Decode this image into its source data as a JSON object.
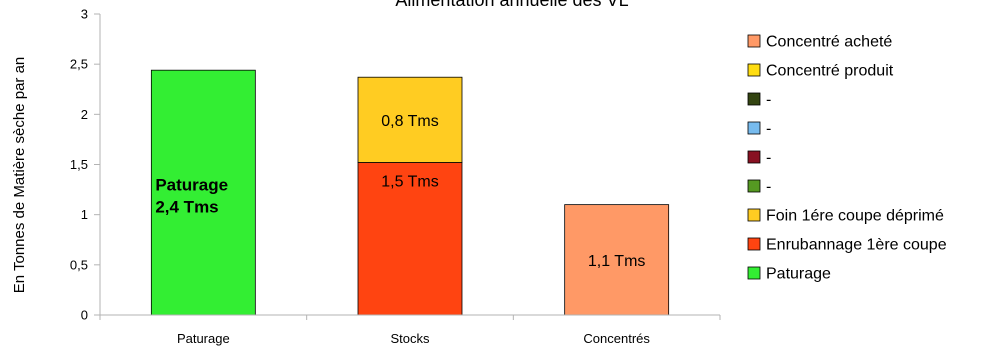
{
  "chart_data": {
    "type": "bar",
    "stacked": true,
    "title": "Alimentation annuelle des VL",
    "xlabel": "",
    "ylabel": "En Tonnes de Matière sèche par an",
    "ylim": [
      0,
      3
    ],
    "yticks": [
      "0",
      "0,5",
      "1",
      "1,5",
      "2",
      "2,5",
      "3"
    ],
    "ytick_values": [
      0,
      0.5,
      1,
      1.5,
      2,
      2.5,
      3
    ],
    "grid": false,
    "legend_position": "right",
    "categories": [
      "Paturage",
      "Stocks",
      "Concentrés"
    ],
    "series": [
      {
        "name": "Paturage",
        "color": "#33ee33",
        "values": [
          2.44,
          0,
          0
        ],
        "labels": [
          "Paturage",
          "",
          ""
        ],
        "labels2": [
          "2,4 Tms",
          "",
          ""
        ]
      },
      {
        "name": "Enrubannage 1ère coupe",
        "color": "#ff4411",
        "values": [
          0,
          1.52,
          0
        ],
        "labels": [
          "",
          "1,5 Tms",
          ""
        ]
      },
      {
        "name": "Foin 1ére coupe déprimé",
        "color": "#ffcc22",
        "values": [
          0,
          0.85,
          0
        ],
        "labels": [
          "",
          "0,8 Tms",
          ""
        ]
      },
      {
        "name": "-",
        "color": "#559922",
        "values": [
          0,
          0,
          0
        ]
      },
      {
        "name": "-",
        "color": "#881122",
        "values": [
          0,
          0,
          0
        ]
      },
      {
        "name": "-",
        "color": "#77bbee",
        "values": [
          0,
          0,
          0
        ]
      },
      {
        "name": "-",
        "color": "#334411",
        "values": [
          0,
          0,
          0
        ]
      },
      {
        "name": "Concentré produit",
        "color": "#ffdd11",
        "values": [
          0,
          0,
          0
        ]
      },
      {
        "name": "Concentré acheté",
        "color": "#ff9966",
        "values": [
          0,
          0,
          1.1
        ],
        "labels": [
          "",
          "",
          "1,1 Tms"
        ]
      }
    ],
    "legend_order": [
      8,
      7,
      6,
      5,
      4,
      3,
      2,
      1,
      0
    ]
  }
}
